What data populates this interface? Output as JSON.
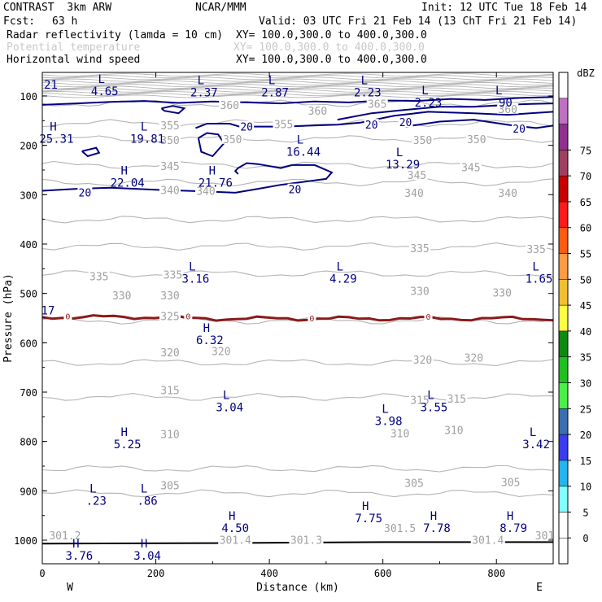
{
  "header": {
    "title": "CONTRAST  3km ARW",
    "center": "NCAR/MMM",
    "init": "Init: 12 UTC Tue 18 Feb 14",
    "fcst_label": "Fcst:",
    "fcst_value": "63 h",
    "valid": "Valid: 03 UTC Fri 21 Feb 14 (13 ChT Fri 21 Feb 14)",
    "fields": [
      {
        "name": "Radar reflectivity (lamda = 10 cm)",
        "xy": "XY= 100.0,300.0 to 400.0,300.0",
        "muted": false
      },
      {
        "name": "Potential temperature",
        "xy": "XY= 100.0,300.0 to 400.0,300.0",
        "muted": true
      },
      {
        "name": "Horizontal wind speed",
        "xy": "XY= 100.0,300.0 to 400.0,300.0",
        "muted": false
      }
    ]
  },
  "colors": {
    "wind": "#000080",
    "theta": "#b4b4b4",
    "freezing": "#8b1a1a",
    "terrain": "#000000"
  },
  "chart_data": {
    "type": "line",
    "xlabel": "Distance (km)",
    "ylabel": "Pressure (hPa)",
    "xlim": [
      0,
      900
    ],
    "ylim": [
      1050,
      50
    ],
    "x_ticks": [
      0,
      200,
      400,
      600,
      800
    ],
    "y_ticks": [
      100,
      200,
      300,
      400,
      500,
      600,
      700,
      800,
      900,
      1000
    ],
    "west_label": "W",
    "east_label": "E",
    "theta_isolines": [
      {
        "value": 360,
        "p": 115
      },
      {
        "value": 355,
        "p": 155
      },
      {
        "value": 350,
        "p": 187
      },
      {
        "value": 345,
        "p": 240
      },
      {
        "value": 340,
        "p": 275
      },
      {
        "value": 335,
        "p": 350
      },
      {
        "value": 330,
        "p": 405
      },
      {
        "value": 325,
        "p": 460
      },
      {
        "value": 320,
        "p": 555
      },
      {
        "value": 315,
        "p": 640
      },
      {
        "value": 310,
        "p": 710
      },
      {
        "value": 305,
        "p": 855
      },
      {
        "value": 301,
        "p": 905
      }
    ],
    "theta_labels": [
      {
        "text": "360",
        "x": 330,
        "p": 118
      },
      {
        "text": "360",
        "x": 485,
        "p": 130
      },
      {
        "text": "365",
        "x": 590,
        "p": 116
      },
      {
        "text": "360",
        "x": 820,
        "p": 126
      },
      {
        "text": "355",
        "x": 225,
        "p": 159
      },
      {
        "text": "355",
        "x": 425,
        "p": 157
      },
      {
        "text": "350",
        "x": 225,
        "p": 189
      },
      {
        "text": "350",
        "x": 335,
        "p": 187
      },
      {
        "text": "350",
        "x": 670,
        "p": 189
      },
      {
        "text": "350",
        "x": 765,
        "p": 187
      },
      {
        "text": "345",
        "x": 225,
        "p": 242
      },
      {
        "text": "345",
        "x": 660,
        "p": 260
      },
      {
        "text": "345",
        "x": 755,
        "p": 244
      },
      {
        "text": "340",
        "x": 225,
        "p": 290
      },
      {
        "text": "340",
        "x": 288,
        "p": 292
      },
      {
        "text": "340",
        "x": 655,
        "p": 296
      },
      {
        "text": "340",
        "x": 820,
        "p": 296
      },
      {
        "text": "335",
        "x": 100,
        "p": 465
      },
      {
        "text": "335",
        "x": 230,
        "p": 462
      },
      {
        "text": "335",
        "x": 665,
        "p": 408
      },
      {
        "text": "335",
        "x": 870,
        "p": 410
      },
      {
        "text": "330",
        "x": 140,
        "p": 504
      },
      {
        "text": "330",
        "x": 225,
        "p": 504
      },
      {
        "text": "330",
        "x": 665,
        "p": 495
      },
      {
        "text": "330",
        "x": 810,
        "p": 498
      },
      {
        "text": "325",
        "x": 225,
        "p": 546
      },
      {
        "text": "320",
        "x": 225,
        "p": 619
      },
      {
        "text": "320",
        "x": 315,
        "p": 617
      },
      {
        "text": "320",
        "x": 670,
        "p": 634
      },
      {
        "text": "320",
        "x": 760,
        "p": 630
      },
      {
        "text": "315",
        "x": 225,
        "p": 696
      },
      {
        "text": "315",
        "x": 665,
        "p": 716
      },
      {
        "text": "315",
        "x": 730,
        "p": 713
      },
      {
        "text": "310",
        "x": 225,
        "p": 785
      },
      {
        "text": "310",
        "x": 630,
        "p": 783
      },
      {
        "text": "310",
        "x": 725,
        "p": 777
      },
      {
        "text": "305",
        "x": 225,
        "p": 889
      },
      {
        "text": "305",
        "x": 655,
        "p": 884
      },
      {
        "text": "305",
        "x": 825,
        "p": 882
      },
      {
        "text": "301.2",
        "x": 40,
        "p": 990
      },
      {
        "text": "301.4",
        "x": 340,
        "p": 999
      },
      {
        "text": "301.3",
        "x": 465,
        "p": 999
      },
      {
        "text": "301.5",
        "x": 630,
        "p": 975
      },
      {
        "text": "301.4",
        "x": 785,
        "p": 999
      },
      {
        "text": "301",
        "x": 885,
        "p": 990
      }
    ],
    "wind_labels": [
      {
        "text": "20",
        "x": 360,
        "p": 162
      },
      {
        "text": "20",
        "x": 580,
        "p": 158
      },
      {
        "text": "20",
        "x": 640,
        "p": 153
      },
      {
        "text": "20",
        "x": 840,
        "p": 166
      },
      {
        "text": "20",
        "x": 75,
        "p": 295
      },
      {
        "text": "20",
        "x": 445,
        "p": 289
      }
    ],
    "freezing_level_labels": [
      {
        "text": "0",
        "x": 45,
        "p": 546
      },
      {
        "text": "0",
        "x": 257,
        "p": 546
      },
      {
        "text": "0",
        "x": 475,
        "p": 550
      },
      {
        "text": "0",
        "x": 680,
        "p": 547
      }
    ],
    "extrema": [
      {
        "type": "L",
        "value": "4.65",
        "x": 110,
        "p": 77
      },
      {
        "type": "L",
        "value": "2.37",
        "x": 285,
        "p": 79
      },
      {
        "type": "L",
        "value": "2.87",
        "x": 410,
        "p": 79
      },
      {
        "type": "L",
        "value": "2.23",
        "x": 573,
        "p": 79
      },
      {
        "type": "L",
        "value": "2.23",
        "x": 680,
        "p": 100
      },
      {
        "type": "L",
        "value": ".90",
        "x": 810,
        "p": 100
      },
      {
        "type": "H",
        "value": "25.31",
        "x": 25,
        "p": 173
      },
      {
        "type": "L",
        "value": "19.81",
        "x": 185,
        "p": 173
      },
      {
        "type": "L",
        "value": "16.44",
        "x": 460,
        "p": 200
      },
      {
        "type": "L",
        "value": "13.29",
        "x": 635,
        "p": 225
      },
      {
        "type": "H",
        "value": "22.04",
        "x": 150,
        "p": 262
      },
      {
        "type": "H",
        "value": "21.76",
        "x": 305,
        "p": 262
      },
      {
        "type": "L",
        "value": "3.16",
        "x": 270,
        "p": 457
      },
      {
        "type": "L",
        "value": "4.29",
        "x": 530,
        "p": 457
      },
      {
        "type": "L",
        "value": "1.65",
        "x": 875,
        "p": 457
      },
      {
        "type": "H",
        "value": "6.32",
        "x": 295,
        "p": 581
      },
      {
        "type": "L",
        "value": "3.04",
        "x": 330,
        "p": 717
      },
      {
        "type": "L",
        "value": "3.55",
        "x": 690,
        "p": 717
      },
      {
        "type": "L",
        "value": "3.98",
        "x": 610,
        "p": 745
      },
      {
        "type": "H",
        "value": "5.25",
        "x": 150,
        "p": 792
      },
      {
        "type": "L",
        "value": "3.42",
        "x": 870,
        "p": 792
      },
      {
        "type": "L",
        "value": ".23",
        "x": 95,
        "p": 907
      },
      {
        "type": "L",
        "value": ".86",
        "x": 185,
        "p": 907
      },
      {
        "type": "H",
        "value": "4.50",
        "x": 340,
        "p": 962
      },
      {
        "type": "H",
        "value": "7.75",
        "x": 575,
        "p": 942
      },
      {
        "type": "H",
        "value": "7.78",
        "x": 695,
        "p": 962
      },
      {
        "type": "H",
        "value": "8.79",
        "x": 830,
        "p": 962
      },
      {
        "type": "H",
        "value": "3.76",
        "x": 65,
        "p": 1018
      },
      {
        "type": "H",
        "value": "3.04",
        "x": 185,
        "p": 1018
      }
    ],
    "edge_labels": [
      {
        "text": "21",
        "x": 15,
        "p": 77
      },
      {
        "text": "17",
        "x": 10,
        "p": 534
      }
    ],
    "colorbar": {
      "unit": "dBZ",
      "levels": [
        -5,
        0,
        5,
        10,
        15,
        20,
        25,
        30,
        35,
        40,
        45,
        50,
        55,
        60,
        65,
        70,
        75,
        80
      ],
      "labels": [
        "0",
        "5",
        "10",
        "15",
        "20",
        "25",
        "30",
        "35",
        "40",
        "45",
        "50",
        "55",
        "60",
        "65",
        "70",
        "75"
      ],
      "colors": [
        "#ffffff",
        "#ffffff",
        "#80ffff",
        "#22b5ef",
        "#3b3bf0",
        "#3a6fb0",
        "#48f048",
        "#20c020",
        "#0e8a0e",
        "#ffff40",
        "#f0c030",
        "#ff9a40",
        "#ff5a10",
        "#ff1a1a",
        "#c80000",
        "#a04060",
        "#903090",
        "#c070c0",
        "#ffffff"
      ]
    }
  }
}
